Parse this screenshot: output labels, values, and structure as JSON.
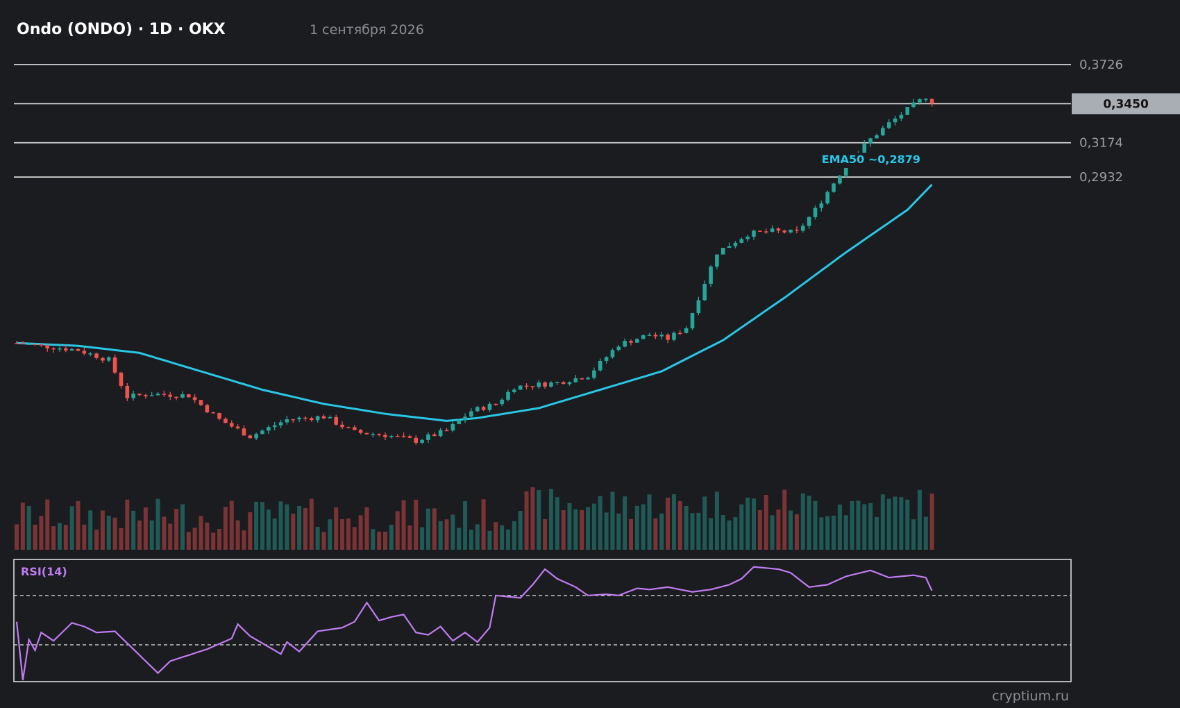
{
  "header": {
    "title": "Ondo (ONDO) · 1D · OKX",
    "date": "1 сентября 2026"
  },
  "watermark": "cryptium.ru",
  "colors": {
    "background": "#1b1c20",
    "up": "#26a69a",
    "down": "#ef5350",
    "ema": "#29c7e6",
    "rsi": "#c07cf2",
    "level_line": "#e6e6e6",
    "price_tag_bg": "#a9adb4"
  },
  "chart_data": {
    "type": "candlestick",
    "timeframe": "1D",
    "ylim": [
      0.08,
      0.38
    ],
    "levels": [
      {
        "value": 0.3726,
        "label": "0,3726"
      },
      {
        "value": 0.3174,
        "label": "0,3174"
      },
      {
        "value": 0.2932,
        "label": "0,2932"
      }
    ],
    "current_price": {
      "value": 0.345,
      "label": "0,3450"
    },
    "ema": {
      "label": "EMA50 ~0,2879",
      "last": 0.2879
    },
    "anchors": [
      [
        0,
        0.176
      ],
      [
        10,
        0.171
      ],
      [
        15,
        0.164
      ],
      [
        18,
        0.138
      ],
      [
        22,
        0.14
      ],
      [
        28,
        0.139
      ],
      [
        33,
        0.122
      ],
      [
        38,
        0.11
      ],
      [
        44,
        0.122
      ],
      [
        50,
        0.124
      ],
      [
        55,
        0.113
      ],
      [
        60,
        0.111
      ],
      [
        65,
        0.107
      ],
      [
        70,
        0.114
      ],
      [
        74,
        0.128
      ],
      [
        78,
        0.133
      ],
      [
        81,
        0.145
      ],
      [
        88,
        0.148
      ],
      [
        93,
        0.153
      ],
      [
        98,
        0.175
      ],
      [
        103,
        0.182
      ],
      [
        106,
        0.179
      ],
      [
        109,
        0.187
      ],
      [
        114,
        0.24
      ],
      [
        119,
        0.253
      ],
      [
        123,
        0.255
      ],
      [
        127,
        0.254
      ],
      [
        130,
        0.27
      ],
      [
        135,
        0.302
      ],
      [
        139,
        0.32
      ],
      [
        142,
        0.331
      ],
      [
        146,
        0.344
      ],
      [
        148,
        0.35
      ],
      [
        149,
        0.345
      ]
    ],
    "ema_anchors": [
      [
        0,
        0.176
      ],
      [
        10,
        0.174
      ],
      [
        20,
        0.169
      ],
      [
        30,
        0.156
      ],
      [
        40,
        0.143
      ],
      [
        50,
        0.133
      ],
      [
        60,
        0.126
      ],
      [
        70,
        0.121
      ],
      [
        75,
        0.123
      ],
      [
        85,
        0.13
      ],
      [
        95,
        0.143
      ],
      [
        105,
        0.156
      ],
      [
        115,
        0.178
      ],
      [
        125,
        0.208
      ],
      [
        135,
        0.24
      ],
      [
        145,
        0.27
      ],
      [
        149,
        0.2879
      ]
    ],
    "rsi": {
      "label": "RSI(14)",
      "period": 14,
      "ylim": [
        0,
        100
      ],
      "overbought": 70,
      "oversold": 30,
      "anchors": [
        [
          0,
          49
        ],
        [
          1,
          0
        ],
        [
          2,
          34
        ],
        [
          3,
          25
        ],
        [
          4,
          40
        ],
        [
          6,
          33
        ],
        [
          9,
          48
        ],
        [
          11,
          45
        ],
        [
          13,
          40
        ],
        [
          16,
          41
        ],
        [
          18,
          31
        ],
        [
          20,
          21
        ],
        [
          22,
          11
        ],
        [
          23,
          6
        ],
        [
          25,
          16
        ],
        [
          28,
          21
        ],
        [
          31,
          26
        ],
        [
          35,
          35
        ],
        [
          36,
          47
        ],
        [
          38,
          37
        ],
        [
          40,
          31
        ],
        [
          43,
          22
        ],
        [
          44,
          32
        ],
        [
          46,
          24
        ],
        [
          49,
          41
        ],
        [
          53,
          44
        ],
        [
          55,
          49
        ],
        [
          57,
          65
        ],
        [
          59,
          50
        ],
        [
          61,
          53
        ],
        [
          63,
          55
        ],
        [
          65,
          40
        ],
        [
          67,
          38
        ],
        [
          69,
          45
        ],
        [
          71,
          33
        ],
        [
          73,
          40
        ],
        [
          75,
          32
        ],
        [
          77,
          44
        ],
        [
          78,
          71
        ],
        [
          80,
          70
        ],
        [
          82,
          69
        ],
        [
          84,
          80
        ],
        [
          86,
          93
        ],
        [
          88,
          85
        ],
        [
          91,
          78
        ],
        [
          93,
          71
        ],
        [
          96,
          72
        ],
        [
          98,
          71
        ],
        [
          101,
          77
        ],
        [
          103,
          76
        ],
        [
          106,
          78
        ],
        [
          110,
          74
        ],
        [
          113,
          76
        ],
        [
          116,
          80
        ],
        [
          118,
          85
        ],
        [
          120,
          95
        ],
        [
          124,
          93
        ],
        [
          126,
          90
        ],
        [
          129,
          78
        ],
        [
          132,
          80
        ],
        [
          135,
          87
        ],
        [
          139,
          92
        ],
        [
          142,
          86
        ],
        [
          146,
          88
        ],
        [
          148,
          86
        ],
        [
          149,
          75
        ]
      ]
    },
    "volume": {
      "note": "relative volume bars, colored by candle direction"
    }
  }
}
